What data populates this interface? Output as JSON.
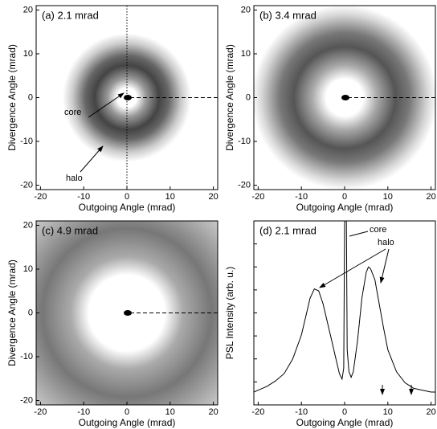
{
  "chart_data": [
    {
      "type": "image",
      "title": "(a) 2.1 mrad",
      "x_label": "Outgoing Angle (mrad)",
      "y_label": "Divergence Angle (mrad)",
      "xlim": [
        -21,
        21
      ],
      "ylim": [
        -21,
        21
      ],
      "xticks": [
        -20,
        -10,
        0,
        10,
        20
      ],
      "yticks": [
        -20,
        -10,
        0,
        10,
        20
      ],
      "annotations": [
        "core",
        "halo"
      ]
    },
    {
      "type": "image",
      "title": "(b) 3.4 mrad",
      "x_label": "Outgoing Angle (mrad)",
      "y_label": "Divergence Angle (mrad)",
      "xlim": [
        -21,
        21
      ],
      "ylim": [
        -21,
        21
      ],
      "xticks": [
        -20,
        -10,
        0,
        10,
        20
      ],
      "yticks": [
        -20,
        -10,
        0,
        10,
        20
      ]
    },
    {
      "type": "image",
      "title": "(c) 4.9 mrad",
      "x_label": "Outgoing Angle (mrad)",
      "y_label": "Divergence Angle (mrad)",
      "xlim": [
        -21,
        21
      ],
      "ylim": [
        -21,
        21
      ],
      "xticks": [
        -20,
        -10,
        0,
        10,
        20
      ],
      "yticks": [
        -20,
        -10,
        0,
        10,
        20
      ]
    },
    {
      "type": "line",
      "title": "(d) 2.1 mrad",
      "x_label": "Outgoing Angle (mrad)",
      "y_label": "PSL Intensity (arb. u.)",
      "xlim": [
        -21,
        21
      ],
      "ylim": [
        0,
        100
      ],
      "xticks": [
        -20,
        -10,
        0,
        10,
        20
      ],
      "annotations": [
        "core",
        "halo"
      ],
      "x": [
        -21,
        -20,
        -18,
        -16,
        -14,
        -12,
        -10,
        -9,
        -8,
        -7,
        -6,
        -5,
        -4,
        -3,
        -2,
        -1.2,
        -0.6,
        -0.2,
        0,
        0.4,
        0.6,
        1,
        1.5,
        2,
        3,
        4,
        5,
        5.5,
        6,
        7,
        8,
        9,
        10,
        12,
        14,
        16,
        18,
        20,
        21
      ],
      "series": [
        {
          "color": "#000000",
          "values": [
            7,
            8,
            10,
            13,
            17,
            25,
            38,
            48,
            58,
            63,
            62,
            55,
            45,
            35,
            25,
            17,
            14,
            20,
            100,
            100,
            30,
            18,
            15,
            18,
            35,
            58,
            72,
            75,
            74,
            68,
            55,
            42,
            30,
            18,
            12,
            9,
            8,
            7,
            7
          ]
        }
      ]
    }
  ]
}
